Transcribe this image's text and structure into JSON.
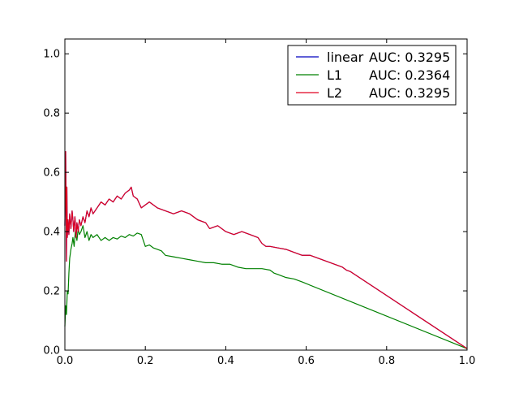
{
  "chart_data": {
    "type": "line",
    "title": "",
    "xlabel": "",
    "ylabel": "",
    "xlim": [
      0.0,
      1.0
    ],
    "ylim": [
      0.0,
      1.05
    ],
    "x_ticks": [
      "0.0",
      "0.2",
      "0.4",
      "0.6",
      "0.8",
      "1.0"
    ],
    "y_ticks": [
      "0.0",
      "0.2",
      "0.4",
      "0.6",
      "0.8",
      "1.0"
    ],
    "grid": false,
    "legend_position": "top-right",
    "legend": [
      {
        "name": "linear",
        "auc_text": "AUC: 0.3295",
        "color": "#0000bf"
      },
      {
        "name": "L1",
        "auc_text": "AUC: 0.2364",
        "color": "#008000"
      },
      {
        "name": "L2",
        "auc_text": "AUC: 0.3295",
        "color": "#e00020"
      }
    ],
    "series": [
      {
        "name": "linear",
        "color": "#0000bf",
        "x": [
          0.0,
          0.002,
          0.004,
          0.005,
          0.006,
          0.008,
          0.01,
          0.012,
          0.015,
          0.018,
          0.02,
          0.022,
          0.025,
          0.028,
          0.03,
          0.033,
          0.036,
          0.04,
          0.045,
          0.05,
          0.055,
          0.06,
          0.065,
          0.07,
          0.08,
          0.09,
          0.1,
          0.11,
          0.12,
          0.13,
          0.14,
          0.15,
          0.16,
          0.165,
          0.17,
          0.18,
          0.19,
          0.2,
          0.21,
          0.22,
          0.23,
          0.25,
          0.27,
          0.29,
          0.31,
          0.32,
          0.33,
          0.35,
          0.36,
          0.38,
          0.4,
          0.42,
          0.44,
          0.46,
          0.48,
          0.49,
          0.5,
          0.51,
          0.53,
          0.55,
          0.57,
          0.59,
          0.61,
          0.63,
          0.65,
          0.67,
          0.69,
          0.7,
          0.71,
          1.0
        ],
        "y": [
          0.42,
          0.67,
          0.3,
          0.55,
          0.38,
          0.44,
          0.39,
          0.46,
          0.41,
          0.47,
          0.44,
          0.4,
          0.45,
          0.38,
          0.43,
          0.4,
          0.44,
          0.42,
          0.45,
          0.43,
          0.47,
          0.45,
          0.48,
          0.46,
          0.48,
          0.5,
          0.49,
          0.51,
          0.5,
          0.52,
          0.51,
          0.53,
          0.54,
          0.55,
          0.52,
          0.51,
          0.48,
          0.49,
          0.5,
          0.49,
          0.48,
          0.47,
          0.46,
          0.47,
          0.46,
          0.45,
          0.44,
          0.43,
          0.41,
          0.42,
          0.4,
          0.39,
          0.4,
          0.39,
          0.38,
          0.36,
          0.35,
          0.35,
          0.345,
          0.34,
          0.33,
          0.32,
          0.32,
          0.31,
          0.3,
          0.29,
          0.28,
          0.27,
          0.265,
          0.005
        ]
      },
      {
        "name": "L1",
        "color": "#008000",
        "x": [
          0.0,
          0.002,
          0.004,
          0.006,
          0.008,
          0.01,
          0.012,
          0.015,
          0.018,
          0.02,
          0.023,
          0.026,
          0.03,
          0.033,
          0.036,
          0.04,
          0.045,
          0.05,
          0.055,
          0.06,
          0.065,
          0.07,
          0.08,
          0.09,
          0.1,
          0.11,
          0.12,
          0.13,
          0.14,
          0.15,
          0.16,
          0.17,
          0.18,
          0.19,
          0.2,
          0.21,
          0.22,
          0.23,
          0.24,
          0.25,
          0.27,
          0.29,
          0.31,
          0.33,
          0.35,
          0.37,
          0.39,
          0.41,
          0.43,
          0.45,
          0.47,
          0.49,
          0.51,
          0.52,
          0.53,
          0.55,
          0.57,
          0.59,
          1.0
        ],
        "y": [
          0.08,
          0.15,
          0.12,
          0.2,
          0.19,
          0.26,
          0.31,
          0.34,
          0.36,
          0.38,
          0.35,
          0.4,
          0.37,
          0.41,
          0.39,
          0.4,
          0.42,
          0.38,
          0.4,
          0.37,
          0.39,
          0.38,
          0.39,
          0.37,
          0.38,
          0.37,
          0.38,
          0.375,
          0.385,
          0.38,
          0.39,
          0.385,
          0.395,
          0.39,
          0.35,
          0.355,
          0.345,
          0.34,
          0.335,
          0.32,
          0.315,
          0.31,
          0.305,
          0.3,
          0.295,
          0.295,
          0.29,
          0.29,
          0.28,
          0.275,
          0.275,
          0.275,
          0.27,
          0.26,
          0.255,
          0.245,
          0.24,
          0.23,
          0.005
        ]
      },
      {
        "name": "L2",
        "color": "#e00020",
        "x": [
          0.0,
          0.002,
          0.004,
          0.005,
          0.006,
          0.008,
          0.01,
          0.012,
          0.015,
          0.018,
          0.02,
          0.022,
          0.025,
          0.028,
          0.03,
          0.033,
          0.036,
          0.04,
          0.045,
          0.05,
          0.055,
          0.06,
          0.065,
          0.07,
          0.08,
          0.09,
          0.1,
          0.11,
          0.12,
          0.13,
          0.14,
          0.15,
          0.16,
          0.165,
          0.17,
          0.18,
          0.19,
          0.2,
          0.21,
          0.22,
          0.23,
          0.25,
          0.27,
          0.29,
          0.31,
          0.32,
          0.33,
          0.35,
          0.36,
          0.38,
          0.4,
          0.42,
          0.44,
          0.46,
          0.48,
          0.49,
          0.5,
          0.51,
          0.53,
          0.55,
          0.57,
          0.59,
          0.61,
          0.63,
          0.65,
          0.67,
          0.69,
          0.7,
          0.71,
          1.0
        ],
        "y": [
          0.42,
          0.67,
          0.3,
          0.55,
          0.38,
          0.44,
          0.39,
          0.46,
          0.41,
          0.47,
          0.44,
          0.4,
          0.45,
          0.38,
          0.43,
          0.4,
          0.44,
          0.42,
          0.45,
          0.43,
          0.47,
          0.45,
          0.48,
          0.46,
          0.48,
          0.5,
          0.49,
          0.51,
          0.5,
          0.52,
          0.51,
          0.53,
          0.54,
          0.55,
          0.52,
          0.51,
          0.48,
          0.49,
          0.5,
          0.49,
          0.48,
          0.47,
          0.46,
          0.47,
          0.46,
          0.45,
          0.44,
          0.43,
          0.41,
          0.42,
          0.4,
          0.39,
          0.4,
          0.39,
          0.38,
          0.36,
          0.35,
          0.35,
          0.345,
          0.34,
          0.33,
          0.32,
          0.32,
          0.31,
          0.3,
          0.29,
          0.28,
          0.27,
          0.265,
          0.005
        ]
      }
    ]
  }
}
